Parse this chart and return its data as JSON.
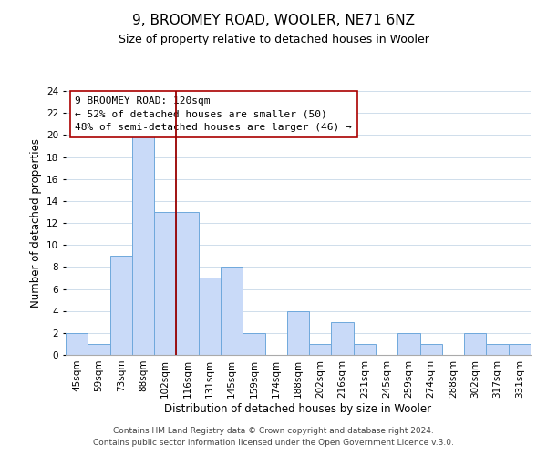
{
  "title": "9, BROOMEY ROAD, WOOLER, NE71 6NZ",
  "subtitle": "Size of property relative to detached houses in Wooler",
  "xlabel": "Distribution of detached houses by size in Wooler",
  "ylabel": "Number of detached properties",
  "bar_labels": [
    "45sqm",
    "59sqm",
    "73sqm",
    "88sqm",
    "102sqm",
    "116sqm",
    "131sqm",
    "145sqm",
    "159sqm",
    "174sqm",
    "188sqm",
    "202sqm",
    "216sqm",
    "231sqm",
    "245sqm",
    "259sqm",
    "274sqm",
    "288sqm",
    "302sqm",
    "317sqm",
    "331sqm"
  ],
  "bar_values": [
    2,
    1,
    9,
    20,
    13,
    13,
    7,
    8,
    2,
    0,
    4,
    1,
    3,
    1,
    0,
    2,
    1,
    0,
    2,
    1,
    1
  ],
  "bar_color": "#c9daf8",
  "bar_edge_color": "#6fa8dc",
  "vline_x": 4.5,
  "vline_color": "#990000",
  "ylim": [
    0,
    24
  ],
  "yticks": [
    0,
    2,
    4,
    6,
    8,
    10,
    12,
    14,
    16,
    18,
    20,
    22,
    24
  ],
  "annotation_line1": "9 BROOMEY ROAD: 120sqm",
  "annotation_line2": "← 52% of detached houses are smaller (50)",
  "annotation_line3": "48% of semi-detached houses are larger (46) →",
  "footer1": "Contains HM Land Registry data © Crown copyright and database right 2024.",
  "footer2": "Contains public sector information licensed under the Open Government Licence v.3.0.",
  "bg_color": "#ffffff",
  "grid_color": "#c8d8e8",
  "title_fontsize": 11,
  "subtitle_fontsize": 9,
  "axis_label_fontsize": 8.5,
  "tick_fontsize": 7.5,
  "annotation_fontsize": 8,
  "footer_fontsize": 6.5
}
